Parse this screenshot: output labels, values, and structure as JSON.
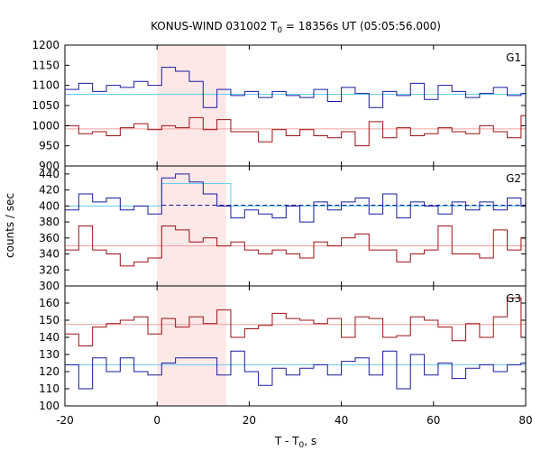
{
  "chart_data": {
    "type": "line",
    "title_main": "KONUS-WIND 031002 T",
    "title_sub": "0",
    "title_rest": " = 18356s UT (05:05:56.000)",
    "xlabel_main": "T - T",
    "xlabel_sub": "0",
    "xlabel_rest": ", s",
    "ylabel": "counts / sec",
    "xlim": [
      -20,
      80
    ],
    "x_ticks": [
      "-20",
      "0",
      "20",
      "40",
      "60",
      "80"
    ],
    "highlight": {
      "x_start": 0,
      "x_end": 15,
      "color": "#fde8e8"
    },
    "bin_edges": [
      -20,
      -17,
      -14,
      -11,
      -8,
      -5,
      -2,
      1,
      4,
      7,
      10,
      13,
      16,
      19,
      22,
      25,
      28,
      31,
      34,
      37,
      40,
      43,
      46,
      49,
      52,
      55,
      58,
      61,
      64,
      67,
      70,
      73,
      76,
      79,
      80
    ],
    "panels": [
      {
        "label": "G1",
        "ylim": [
          900,
          1200
        ],
        "y_ticks": [
          "900",
          "950",
          "1000",
          "1050",
          "1100",
          "1150",
          "1200"
        ],
        "series": [
          {
            "color": "#1a1aa0",
            "values": [
              1090,
              1105,
              1085,
              1100,
              1095,
              1110,
              1100,
              1145,
              1135,
              1110,
              1045,
              1090,
              1075,
              1085,
              1070,
              1085,
              1075,
              1070,
              1090,
              1060,
              1095,
              1080,
              1045,
              1085,
              1075,
              1105,
              1065,
              1100,
              1085,
              1070,
              1080,
              1095,
              1075,
              1080
            ]
          },
          {
            "color": "#a01010",
            "values": [
              1000,
              980,
              985,
              975,
              995,
              1005,
              990,
              1000,
              995,
              1020,
              990,
              1015,
              985,
              985,
              960,
              990,
              975,
              990,
              975,
              970,
              985,
              950,
              1010,
              970,
              995,
              975,
              980,
              995,
              985,
              980,
              1000,
              985,
              970,
              1025
            ]
          }
        ],
        "fits": [
          {
            "color": "#66ccee",
            "value": 1078
          },
          {
            "color": "#f4a0a0",
            "value": 992
          }
        ]
      },
      {
        "label": "G2",
        "ylim": [
          300,
          450
        ],
        "y_ticks": [
          "300",
          "320",
          "340",
          "360",
          "380",
          "400",
          "420",
          "440"
        ],
        "series": [
          {
            "color": "#1a1aa0",
            "values": [
              395,
              415,
              405,
              410,
              395,
              400,
              390,
              435,
              440,
              430,
              415,
              400,
              385,
              395,
              390,
              385,
              400,
              380,
              405,
              395,
              405,
              410,
              390,
              415,
              385,
              405,
              400,
              390,
              405,
              395,
              405,
              395,
              410,
              400
            ]
          },
          {
            "color": "#a01010",
            "values": [
              345,
              375,
              345,
              340,
              325,
              330,
              335,
              375,
              370,
              355,
              360,
              350,
              355,
              345,
              340,
              345,
              340,
              335,
              355,
              350,
              360,
              365,
              345,
              345,
              330,
              340,
              345,
              375,
              340,
              340,
              335,
              370,
              345,
              360
            ]
          }
        ],
        "fits": [
          {
            "color": "#66ccee",
            "value": 400,
            "step": {
              "x_start": 1,
              "x_end": 16,
              "value": 428
            }
          },
          {
            "color": "#f4a0a0",
            "value": 350
          }
        ],
        "dashed": {
          "color": "#1a1aa0",
          "value": 401,
          "x_start": 1
        }
      },
      {
        "label": "G3",
        "ylim": [
          100,
          170
        ],
        "y_ticks": [
          "100",
          "110",
          "120",
          "130",
          "140",
          "150",
          "160"
        ],
        "series": [
          {
            "color": "#a01010",
            "values": [
              142,
              135,
              146,
              148,
              150,
              152,
              142,
              151,
              146,
              152,
              148,
              156,
              140,
              145,
              147,
              154,
              151,
              150,
              148,
              151,
              140,
              152,
              151,
              140,
              141,
              152,
              150,
              146,
              138,
              148,
              140,
              152,
              163,
              140
            ]
          },
          {
            "color": "#1a1aa0",
            "values": [
              124,
              110,
              128,
              120,
              128,
              120,
              118,
              125,
              128,
              128,
              128,
              118,
              132,
              120,
              112,
              122,
              118,
              122,
              124,
              118,
              126,
              128,
              118,
              132,
              110,
              130,
              118,
              125,
              116,
              122,
              124,
              120,
              124,
              125
            ]
          }
        ],
        "fits": [
          {
            "color": "#f4a0a0",
            "value": 147.5
          },
          {
            "color": "#66ccee",
            "value": 124
          }
        ]
      }
    ]
  }
}
